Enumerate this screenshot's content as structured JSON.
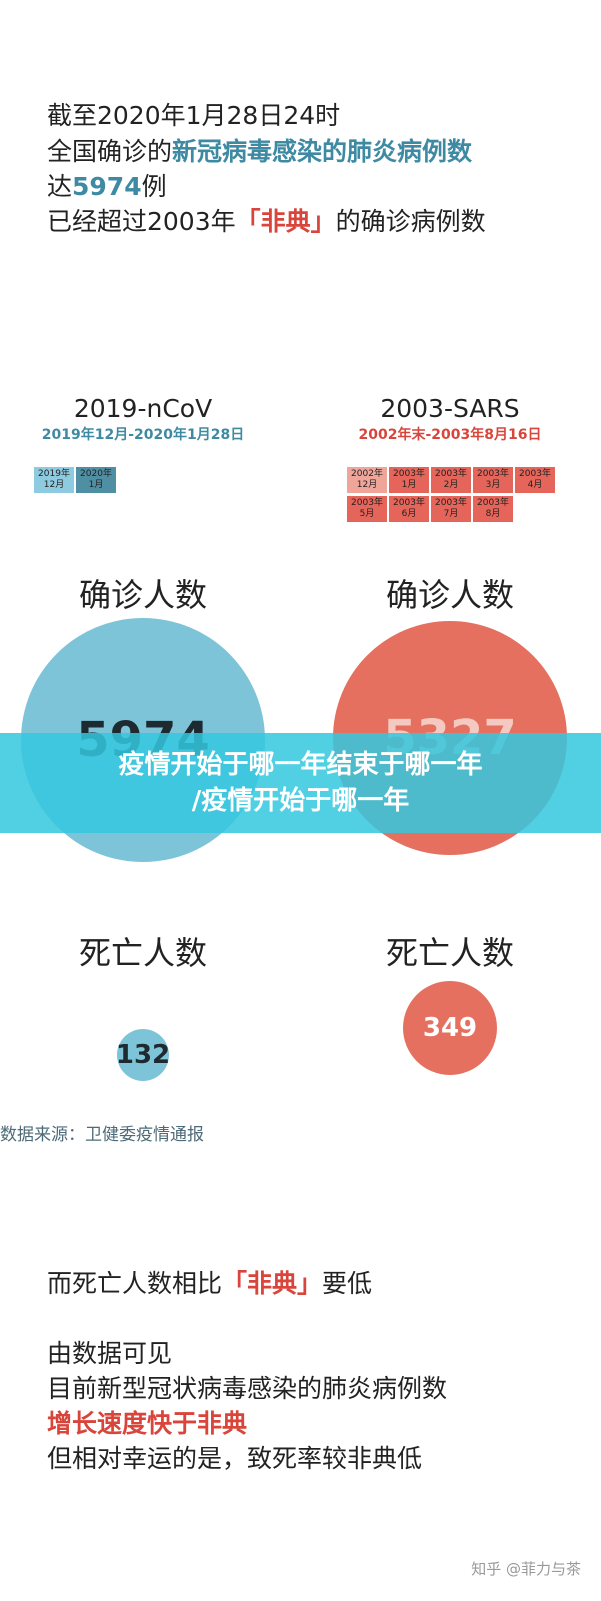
{
  "intro": {
    "line1": "截至2020年1月28日24时",
    "line2": {
      "prefix": "全国确诊的",
      "highlight": "新冠病毒感染的肺炎病例数"
    },
    "line3": {
      "prefix": "达",
      "highlight": "5974",
      "suffix": "例"
    },
    "line4": {
      "prefix": "已经超过2003年",
      "highlight": "「非典」",
      "suffix": "的确诊病例数"
    }
  },
  "left": {
    "title": "2019-nCoV",
    "period": "2019年12月-2020年1月28日",
    "months": [
      {
        "year": "2019年",
        "month": "12月"
      },
      {
        "year": "2020年",
        "month": "1月"
      }
    ],
    "confirmed_label": "确诊人数",
    "confirmed": "5974",
    "deaths_label": "死亡人数",
    "deaths": "132"
  },
  "right": {
    "title": "2003-SARS",
    "period": "2002年末-2003年8月16日",
    "months": [
      {
        "year": "2002年",
        "month": "12月"
      },
      {
        "year": "2003年",
        "month": "1月"
      },
      {
        "year": "2003年",
        "month": "2月"
      },
      {
        "year": "2003年",
        "month": "3月"
      },
      {
        "year": "2003年",
        "month": "4月"
      },
      {
        "year": "2003年",
        "month": "5月"
      },
      {
        "year": "2003年",
        "month": "6月"
      },
      {
        "year": "2003年",
        "month": "7月"
      },
      {
        "year": "2003年",
        "month": "8月"
      }
    ],
    "confirmed_label": "确诊人数",
    "confirmed": "5327",
    "deaths_label": "死亡人数",
    "deaths": "349"
  },
  "banner": {
    "line1": "疫情开始于哪一年结束于哪一年",
    "line2": "/疫情开始于哪一年"
  },
  "source": "数据来源：卫健委疫情通报",
  "conclusion": {
    "line1": {
      "prefix": "而死亡人数相比",
      "highlight": "「非典」",
      "suffix": "要低"
    },
    "line2": "由数据可见",
    "line3": "目前新型冠状病毒感染的肺炎病例数",
    "line4": "增长速度快于非典",
    "line5": "但相对幸运的是，致死率较非典低"
  },
  "watermark": "知乎 @菲力与茶"
}
